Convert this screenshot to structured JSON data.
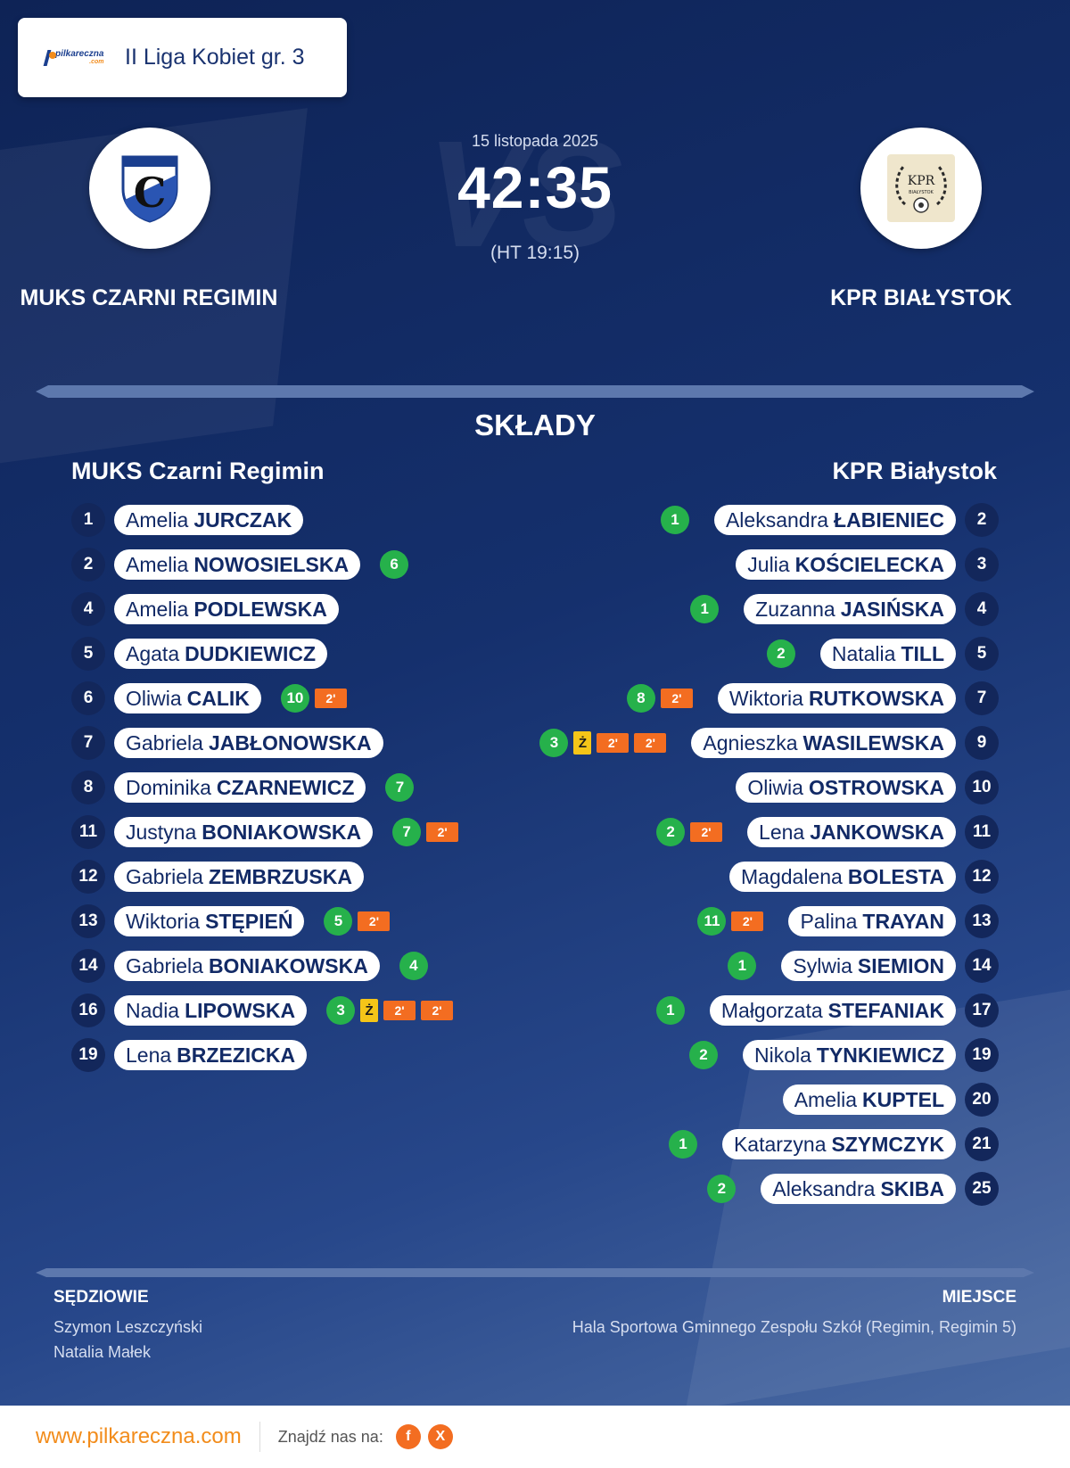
{
  "brand": {
    "logo_text": "pilkareczna",
    "logo_sub": ".com"
  },
  "league": "II Liga Kobiet gr. 3",
  "match": {
    "date": "15 listopada 2025",
    "score": "42:35",
    "halftime": "(HT 19:15)",
    "vs_text": "VS"
  },
  "home": {
    "name": "MUKS Czarni Regimin",
    "name_upper": "MUKS CZARNI REGIMIN",
    "crest_letter": "C"
  },
  "away": {
    "name": "KPR Białystok",
    "name_upper": "KPR BIAŁYSTOK",
    "crest_text": "KPR",
    "crest_sub": "BIAŁYSTOK"
  },
  "section_title": "SKŁADY",
  "home_players": [
    {
      "num": "1",
      "first": "Amelia",
      "last": "JURCZAK",
      "goals": "",
      "yellow": "",
      "susp": []
    },
    {
      "num": "2",
      "first": "Amelia",
      "last": "NOWOSIELSKA",
      "goals": "6",
      "yellow": "",
      "susp": []
    },
    {
      "num": "4",
      "first": "Amelia",
      "last": "PODLEWSKA",
      "goals": "",
      "yellow": "",
      "susp": []
    },
    {
      "num": "5",
      "first": "Agata",
      "last": "DUDKIEWICZ",
      "goals": "",
      "yellow": "",
      "susp": []
    },
    {
      "num": "6",
      "first": "Oliwia",
      "last": "CALIK",
      "goals": "10",
      "yellow": "",
      "susp": [
        "2'"
      ]
    },
    {
      "num": "7",
      "first": "Gabriela",
      "last": "JABŁONOWSKA",
      "goals": "",
      "yellow": "",
      "susp": []
    },
    {
      "num": "8",
      "first": "Dominika",
      "last": "CZARNEWICZ",
      "goals": "7",
      "yellow": "",
      "susp": []
    },
    {
      "num": "11",
      "first": "Justyna",
      "last": "BONIAKOWSKA",
      "goals": "7",
      "yellow": "",
      "susp": [
        "2'"
      ]
    },
    {
      "num": "12",
      "first": "Gabriela",
      "last": "ZEMBRZUSKA",
      "goals": "",
      "yellow": "",
      "susp": []
    },
    {
      "num": "13",
      "first": "Wiktoria",
      "last": "STĘPIEŃ",
      "goals": "5",
      "yellow": "",
      "susp": [
        "2'"
      ]
    },
    {
      "num": "14",
      "first": "Gabriela",
      "last": "BONIAKOWSKA",
      "goals": "4",
      "yellow": "",
      "susp": []
    },
    {
      "num": "16",
      "first": "Nadia",
      "last": "LIPOWSKA",
      "goals": "3",
      "yellow": "Ż",
      "susp": [
        "2'",
        "2'"
      ]
    },
    {
      "num": "19",
      "first": "Lena",
      "last": "BRZEZICKA",
      "goals": "",
      "yellow": "",
      "susp": []
    }
  ],
  "away_players": [
    {
      "num": "2",
      "first": "Aleksandra",
      "last": "ŁABIENIEC",
      "goals": "1",
      "yellow": "",
      "susp": []
    },
    {
      "num": "3",
      "first": "Julia",
      "last": "KOŚCIELECKA",
      "goals": "",
      "yellow": "",
      "susp": []
    },
    {
      "num": "4",
      "first": "Zuzanna",
      "last": "JASIŃSKA",
      "goals": "1",
      "yellow": "",
      "susp": []
    },
    {
      "num": "5",
      "first": "Natalia",
      "last": "TILL",
      "goals": "2",
      "yellow": "",
      "susp": []
    },
    {
      "num": "7",
      "first": "Wiktoria",
      "last": "RUTKOWSKA",
      "goals": "8",
      "yellow": "",
      "susp": [
        "2'"
      ]
    },
    {
      "num": "9",
      "first": "Agnieszka",
      "last": "WASILEWSKA",
      "goals": "3",
      "yellow": "Ż",
      "susp": [
        "2'",
        "2'"
      ]
    },
    {
      "num": "10",
      "first": "Oliwia",
      "last": "OSTROWSKA",
      "goals": "",
      "yellow": "",
      "susp": []
    },
    {
      "num": "11",
      "first": "Lena",
      "last": "JANKOWSKA",
      "goals": "2",
      "yellow": "",
      "susp": [
        "2'"
      ]
    },
    {
      "num": "12",
      "first": "Magdalena",
      "last": "BOLESTA",
      "goals": "",
      "yellow": "",
      "susp": []
    },
    {
      "num": "13",
      "first": "Palina",
      "last": "TRAYAN",
      "goals": "11",
      "yellow": "",
      "susp": [
        "2'"
      ]
    },
    {
      "num": "14",
      "first": "Sylwia",
      "last": "SIEMION",
      "goals": "1",
      "yellow": "",
      "susp": []
    },
    {
      "num": "17",
      "first": "Małgorzata",
      "last": "STEFANIAK",
      "goals": "1",
      "yellow": "",
      "susp": []
    },
    {
      "num": "19",
      "first": "Nikola",
      "last": "TYNKIEWICZ",
      "goals": "2",
      "yellow": "",
      "susp": []
    },
    {
      "num": "20",
      "first": "Amelia",
      "last": "KUPTEL",
      "goals": "",
      "yellow": "",
      "susp": []
    },
    {
      "num": "21",
      "first": "Katarzyna",
      "last": "SZYMCZYK",
      "goals": "1",
      "yellow": "",
      "susp": []
    },
    {
      "num": "25",
      "first": "Aleksandra",
      "last": "SKIBA",
      "goals": "2",
      "yellow": "",
      "susp": []
    }
  ],
  "referees": {
    "label": "SĘDZIOWIE",
    "names": [
      "Szymon Leszczyński",
      "Natalia Małek"
    ]
  },
  "venue": {
    "label": "MIEJSCE",
    "text": "Hala Sportowa Gminnego Zespołu Szkół (Regimin, Regimin 5)"
  },
  "footer": {
    "url": "www.pilkareczna.com",
    "find_us": "Znajdź nas na:",
    "social": [
      "f",
      "X"
    ]
  },
  "colors": {
    "goal": "#26b14b",
    "suspension": "#f36d21",
    "yellow": "#f5c518",
    "accent": "#f28c1b",
    "navy": "#13275b"
  }
}
